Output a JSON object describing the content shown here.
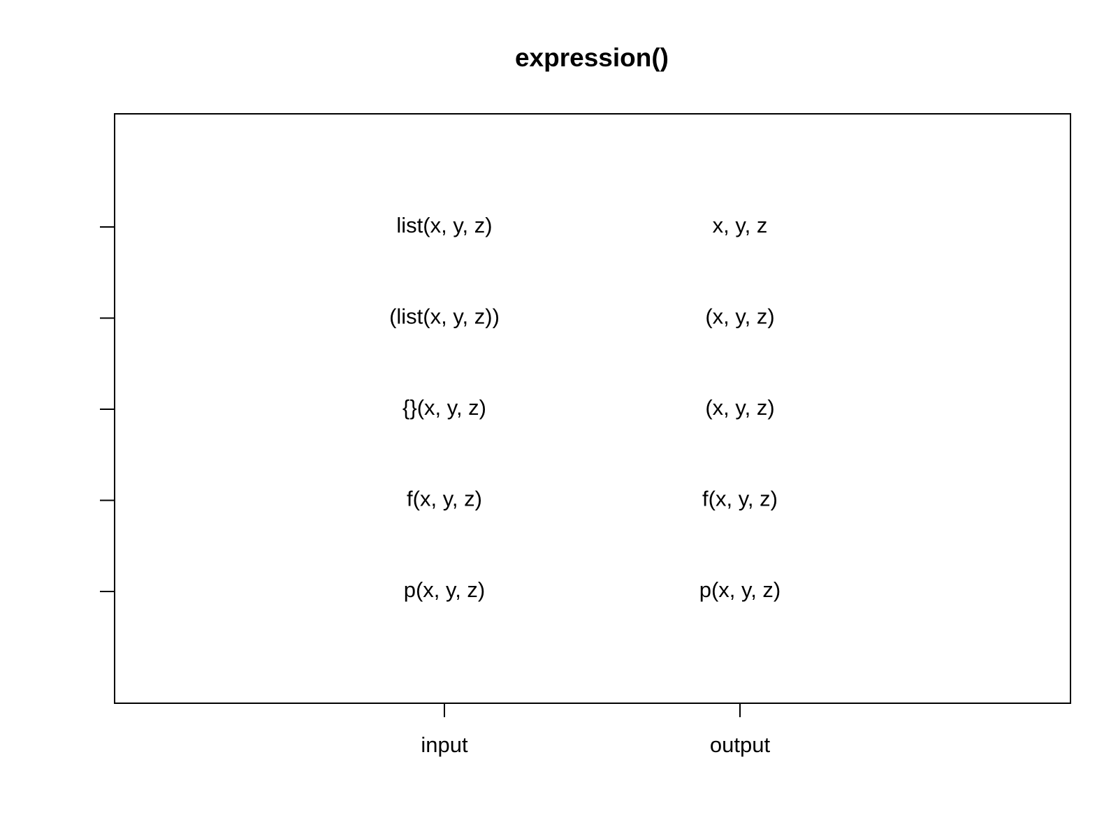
{
  "title": "expression()",
  "columns": [
    "input",
    "output"
  ],
  "rows": [
    [
      "list(x, y, z)",
      "x, y, z"
    ],
    [
      "(list(x, y, z))",
      "(x, y, z)"
    ],
    [
      "{}(x, y, z)",
      "(x, y, z)"
    ],
    [
      "f(x, y, z)",
      "f(x, y, z)"
    ],
    [
      "p(x, y, z)",
      "p(x, y, z)"
    ]
  ]
}
